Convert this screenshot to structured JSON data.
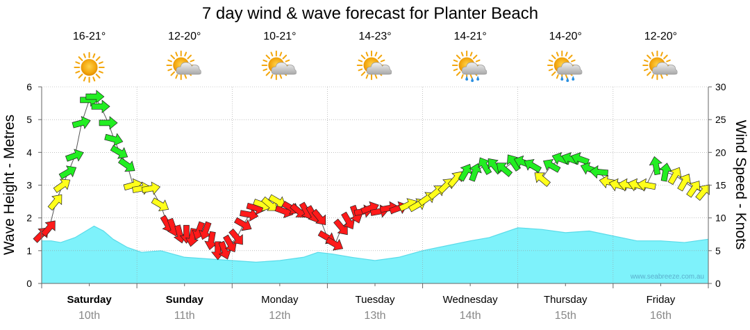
{
  "chart_data": {
    "type": "line",
    "title": "7 day wind & wave forecast for Planter Beach",
    "ylabel_left": "Wave Height - Metres",
    "ylabel_right": "Wind Speed - Knots",
    "ylim_left": [
      0,
      6
    ],
    "ylim_right": [
      0,
      30
    ],
    "yticks_left": [
      "0",
      "1",
      "2",
      "3",
      "4",
      "5",
      "6"
    ],
    "yticks_right": [
      "0",
      "5",
      "10",
      "15",
      "20",
      "25",
      "30"
    ],
    "credit": "www.seabreeze.com.au",
    "grid": true,
    "colors": {
      "wave_fill": "#7ef2fb",
      "wave_line": "#5adbe9",
      "wind_red": "#ff1a1a",
      "wind_yellow": "#ffff1a",
      "wind_green": "#22ee22",
      "grid": "#999999"
    },
    "days": [
      {
        "name": "Saturday",
        "date": "10th",
        "bold": true,
        "temp": "16-21°",
        "icon": "sunny-icon"
      },
      {
        "name": "Sunday",
        "date": "11th",
        "bold": true,
        "temp": "12-20°",
        "icon": "partly-cloudy-icon"
      },
      {
        "name": "Monday",
        "date": "12th",
        "bold": false,
        "temp": "10-21°",
        "icon": "partly-cloudy-icon"
      },
      {
        "name": "Tuesday",
        "date": "13th",
        "bold": false,
        "temp": "14-23°",
        "icon": "partly-cloudy-icon"
      },
      {
        "name": "Wednesday",
        "date": "14th",
        "bold": false,
        "temp": "14-21°",
        "icon": "sun-showers-icon"
      },
      {
        "name": "Thursday",
        "date": "15th",
        "bold": false,
        "temp": "14-20°",
        "icon": "sun-showers-icon"
      },
      {
        "name": "Friday",
        "date": "16th",
        "bold": false,
        "temp": "12-20°",
        "icon": "partly-cloudy-icon"
      }
    ],
    "wave_series": {
      "name": "Wave Height",
      "t": [
        0,
        0.1,
        0.2,
        0.35,
        0.55,
        0.65,
        0.75,
        0.9,
        1.05,
        1.25,
        1.5,
        1.75,
        2.0,
        2.25,
        2.5,
        2.75,
        2.9,
        3.05,
        3.25,
        3.5,
        3.75,
        4.0,
        4.25,
        4.5,
        4.7,
        4.8,
        4.9,
        5.0,
        5.25,
        5.5,
        5.75,
        6.0,
        6.25,
        6.5,
        6.75,
        7.0
      ],
      "values": [
        1.3,
        1.3,
        1.25,
        1.4,
        1.75,
        1.6,
        1.35,
        1.1,
        0.95,
        1.0,
        0.8,
        0.75,
        0.7,
        0.65,
        0.7,
        0.8,
        0.95,
        0.9,
        0.8,
        0.7,
        0.8,
        1.0,
        1.15,
        1.3,
        1.4,
        1.5,
        1.6,
        1.7,
        1.65,
        1.55,
        1.6,
        1.45,
        1.3,
        1.3,
        1.25,
        1.35
      ]
    },
    "wind_series": {
      "name": "Wind Speed",
      "t": [
        0,
        0.08,
        0.15,
        0.22,
        0.28,
        0.35,
        0.42,
        0.5,
        0.56,
        0.62,
        0.7,
        0.76,
        0.82,
        0.9,
        0.96,
        1.05,
        1.15,
        1.25,
        1.32,
        1.38,
        1.45,
        1.52,
        1.58,
        1.65,
        1.72,
        1.78,
        1.85,
        1.92,
        1.98,
        2.05,
        2.12,
        2.18,
        2.25,
        2.32,
        2.4,
        2.48,
        2.55,
        2.62,
        2.7,
        2.78,
        2.85,
        2.92,
        3.0,
        3.08,
        3.15,
        3.22,
        3.3,
        3.38,
        3.45,
        3.55,
        3.65,
        3.75,
        3.85,
        3.95,
        4.05,
        4.15,
        4.25,
        4.35,
        4.45,
        4.55,
        4.65,
        4.75,
        4.85,
        4.95,
        5.05,
        5.15,
        5.25,
        5.35,
        5.45,
        5.55,
        5.65,
        5.75,
        5.85,
        5.95,
        6.05,
        6.15,
        6.25,
        6.35,
        6.45,
        6.55,
        6.65,
        6.75,
        6.85,
        6.95
      ],
      "values": [
        7.5,
        8.5,
        12.5,
        15,
        17,
        19.5,
        24.5,
        28,
        28.5,
        27,
        24.5,
        22,
        20,
        18,
        15,
        14.5,
        14.5,
        12,
        9,
        8.5,
        7.5,
        7.5,
        7,
        8,
        8,
        6.5,
        5,
        5,
        6,
        7,
        9,
        10.5,
        11.5,
        12,
        12,
        12.5,
        11,
        11.5,
        11,
        11,
        10.5,
        10,
        7,
        6,
        8.5,
        9.5,
        10.5,
        11,
        11.5,
        11,
        11.5,
        11.5,
        12,
        12,
        13,
        14,
        15,
        16,
        17,
        17,
        18,
        18,
        17.5,
        18.5,
        18.5,
        18,
        16,
        18,
        19,
        19,
        19,
        17.5,
        17,
        15.5,
        15,
        15,
        15,
        15,
        18,
        17,
        16.5,
        15.5,
        14.5,
        14
      ],
      "direction_deg": [
        45,
        50,
        50,
        35,
        30,
        20,
        15,
        0,
        0,
        0,
        0,
        345,
        330,
        325,
        15,
        10,
        10,
        330,
        300,
        290,
        285,
        270,
        260,
        250,
        250,
        260,
        270,
        290,
        300,
        310,
        330,
        350,
        345,
        340,
        320,
        330,
        340,
        330,
        320,
        300,
        300,
        310,
        330,
        330,
        310,
        300,
        290,
        10,
        20,
        10,
        10,
        20,
        25,
        30,
        35,
        40,
        45,
        50,
        60,
        70,
        120,
        130,
        140,
        125,
        160,
        150,
        140,
        150,
        160,
        160,
        160,
        160,
        175,
        170,
        165,
        170,
        165,
        170,
        100,
        80,
        60,
        60,
        55,
        50
      ]
    }
  }
}
